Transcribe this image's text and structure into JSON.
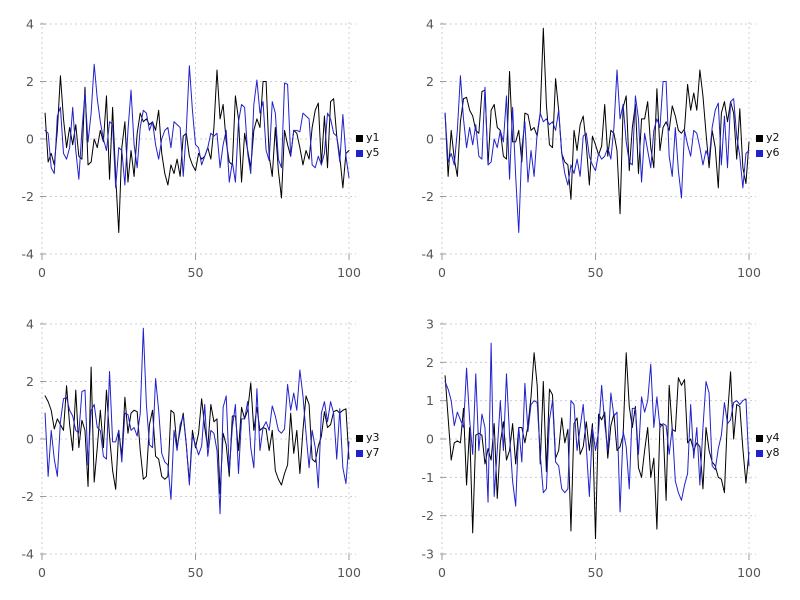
{
  "figure": {
    "background": "#ffffff"
  },
  "styles": {
    "grid_color": "#ccccd9",
    "tick_color": "#9a9aa0",
    "tick_label_color": "#555555",
    "legend_text_color": "#111111",
    "series_black": "#000000",
    "series_blue": "#2222cc"
  },
  "chart_data": [
    {
      "type": "line",
      "position": "top-left",
      "title": "",
      "xlabel": "",
      "ylabel": "",
      "grid": true,
      "legend_position": "right-center",
      "xlim": [
        0,
        100
      ],
      "ylim": [
        -4,
        4
      ],
      "xtick_values": [
        0,
        50,
        100
      ],
      "xtick_labels": [
        "0",
        "50",
        "100"
      ],
      "ytick_values": [
        -4,
        -2,
        0,
        2,
        4
      ],
      "ytick_labels": [
        "-4",
        "-2",
        "0",
        "2",
        "4"
      ],
      "x_start": 1,
      "x_step": 1,
      "series": [
        {
          "name": "y1",
          "color": "#000000",
          "values": [
            0.9,
            -0.8,
            -0.5,
            -0.9,
            0.3,
            2.2,
            0.7,
            -0.3,
            0.4,
            -0.2,
            0.5,
            -0.6,
            -0.7,
            1.8,
            -0.9,
            -0.8,
            0.0,
            -0.3,
            0.3,
            -0.1,
            1.5,
            -1.4,
            1.1,
            -1.3,
            -3.25,
            -0.3,
            0.6,
            -1.5,
            -0.4,
            -1.3,
            0.2,
            0.9,
            0.6,
            0.7,
            0.5,
            0.6,
            0.3,
            1.0,
            -0.5,
            -1.2,
            -1.6,
            -0.9,
            -1.2,
            -0.7,
            -1.3,
            0.1,
            0.2,
            -0.6,
            -0.9,
            -1.1,
            -0.5,
            -0.7,
            -0.6,
            -0.3,
            -0.7,
            0.4,
            2.4,
            0.7,
            1.2,
            -0.1,
            -0.8,
            -0.9,
            1.5,
            0.7,
            -1.5,
            0.2,
            -0.4,
            -1.0,
            0.3,
            0.7,
            0.4,
            2.0,
            2.0,
            -0.6,
            -1.3,
            0.4,
            -1.1,
            -2.05,
            0.3,
            -0.2,
            -0.6,
            0.3,
            0.2,
            -0.3,
            -0.9,
            -0.4,
            -0.7,
            0.4,
            1.0,
            1.25,
            -0.9,
            0.8,
            -1.0,
            1.3,
            1.4,
            0.1,
            -0.6,
            -1.7,
            -0.5,
            -0.4
          ]
        },
        {
          "name": "y5",
          "color": "#2222cc",
          "values": [
            0.3,
            0.2,
            -1.0,
            -1.2,
            0.8,
            1.1,
            -0.5,
            -0.7,
            -0.3,
            1.1,
            -0.4,
            -1.4,
            0.3,
            1.6,
            -0.1,
            0.9,
            2.6,
            1.4,
            0.6,
            0.0,
            -0.4,
            0.6,
            0.5,
            -1.7,
            -0.3,
            -0.4,
            -1.6,
            0.3,
            1.7,
            -0.2,
            -1.0,
            0.4,
            1.0,
            0.9,
            0.3,
            0.6,
            -0.2,
            -0.7,
            0.0,
            0.3,
            0.4,
            -0.3,
            0.6,
            0.5,
            0.4,
            -1.3,
            0.3,
            2.55,
            1.0,
            -0.2,
            -0.3,
            -0.9,
            -0.6,
            -0.3,
            0.2,
            0.1,
            0.2,
            -1.0,
            -0.2,
            0.3,
            -1.5,
            -0.8,
            -1.5,
            0.6,
            1.2,
            1.1,
            -0.5,
            -1.2,
            1.2,
            2.05,
            0.9,
            1.3,
            -0.4,
            -0.75,
            1.3,
            0.9,
            -0.7,
            -1.0,
            1.95,
            1.9,
            -0.6,
            0.3,
            0.3,
            0.25,
            0.9,
            0.8,
            0.7,
            -0.9,
            -1.0,
            -0.6,
            -0.9,
            -0.5,
            0.9,
            0.7,
            0.2,
            0.1,
            -0.8,
            0.85,
            -0.6,
            -1.35
          ]
        }
      ]
    },
    {
      "type": "line",
      "position": "top-right",
      "title": "",
      "xlabel": "",
      "ylabel": "",
      "grid": true,
      "legend_position": "right-center",
      "xlim": [
        0,
        100
      ],
      "ylim": [
        -4,
        4
      ],
      "xtick_values": [
        0,
        50,
        100
      ],
      "xtick_labels": [
        "0",
        "50",
        "100"
      ],
      "ytick_values": [
        -4,
        -2,
        0,
        2,
        4
      ],
      "ytick_labels": [
        "-4",
        "-2",
        "0",
        "2",
        "4"
      ],
      "x_start": 1,
      "x_step": 1,
      "series": [
        {
          "name": "y2",
          "color": "#000000",
          "values": [
            0.9,
            -1.3,
            0.3,
            -0.7,
            -1.3,
            0.6,
            1.4,
            1.45,
            1.0,
            0.8,
            0.3,
            0.2,
            1.65,
            1.7,
            -0.9,
            1.0,
            1.2,
            0.4,
            0.3,
            -0.6,
            -0.7,
            2.35,
            -0.1,
            -0.1,
            0.3,
            -0.8,
            0.9,
            0.85,
            0.3,
            0.4,
            0.1,
            0.9,
            3.85,
            1.2,
            -0.2,
            -0.3,
            2.1,
            1.0,
            -0.5,
            -0.8,
            -0.9,
            -2.1,
            0.3,
            -0.4,
            0.5,
            0.8,
            -0.2,
            -1.6,
            0.1,
            -0.2,
            -0.55,
            -0.25,
            1.2,
            -0.6,
            0.3,
            0.2,
            -0.4,
            -2.6,
            1.1,
            1.5,
            -1.1,
            0.4,
            1.2,
            -1.2,
            0.7,
            0.7,
            1.3,
            -0.3,
            -1.0,
            1.75,
            -0.4,
            0.4,
            0.6,
            0.3,
            1.15,
            0.8,
            0.3,
            0.2,
            0.35,
            1.9,
            1.0,
            1.6,
            1.0,
            2.4,
            1.5,
            0.2,
            -1.0,
            0.3,
            -0.3,
            -1.7,
            0.9,
            1.3,
            0.6,
            1.3,
            0.9,
            -0.7,
            1.05,
            -1.0,
            -1.55,
            -0.1
          ]
        },
        {
          "name": "y6",
          "color": "#2222cc",
          "values": [
            0.9,
            -0.8,
            -0.5,
            -0.9,
            0.3,
            2.2,
            0.7,
            -0.3,
            0.4,
            -0.2,
            0.5,
            -0.6,
            -0.7,
            1.8,
            -0.9,
            -0.8,
            0.0,
            -0.3,
            0.3,
            -0.1,
            1.5,
            -1.4,
            1.1,
            -1.3,
            -3.25,
            -0.3,
            0.6,
            -1.5,
            -0.4,
            -1.3,
            0.2,
            0.9,
            0.6,
            0.7,
            0.5,
            0.6,
            0.3,
            1.0,
            -0.5,
            -1.2,
            -1.6,
            -0.9,
            -1.2,
            -0.7,
            -1.3,
            0.1,
            0.2,
            -0.6,
            -0.9,
            -1.1,
            -0.5,
            -0.7,
            -0.6,
            -0.3,
            -0.7,
            0.4,
            2.4,
            0.7,
            1.2,
            -0.1,
            -0.8,
            -0.9,
            1.5,
            0.7,
            -1.5,
            0.2,
            -0.4,
            -1.0,
            0.3,
            0.7,
            0.4,
            2.0,
            2.0,
            -0.6,
            -1.3,
            0.4,
            -1.1,
            -2.05,
            0.3,
            -0.2,
            -0.6,
            0.3,
            0.2,
            -0.3,
            -0.9,
            -0.4,
            -0.7,
            0.4,
            1.0,
            1.25,
            -0.9,
            0.8,
            -1.0,
            1.3,
            1.4,
            0.1,
            -0.6,
            -1.7,
            -0.5,
            -0.4
          ]
        }
      ]
    },
    {
      "type": "line",
      "position": "bottom-left",
      "title": "",
      "xlabel": "",
      "ylabel": "",
      "grid": true,
      "legend_position": "right-center",
      "xlim": [
        0,
        100
      ],
      "ylim": [
        -4,
        4
      ],
      "xtick_values": [
        0,
        50,
        100
      ],
      "xtick_labels": [
        "0",
        "50",
        "100"
      ],
      "ytick_values": [
        -4,
        -2,
        0,
        2,
        4
      ],
      "ytick_labels": [
        "-4",
        "-2",
        "0",
        "2",
        "4"
      ],
      "x_start": 1,
      "x_step": 1,
      "series": [
        {
          "name": "y3",
          "color": "#000000",
          "values": [
            1.5,
            1.3,
            1.0,
            0.35,
            0.7,
            0.5,
            0.3,
            1.85,
            0.5,
            -0.4,
            1.7,
            -0.3,
            0.65,
            0.3,
            -1.65,
            2.5,
            -1.5,
            -0.3,
            1.0,
            -0.3,
            1.7,
            0.1,
            -1.1,
            -1.75,
            0.3,
            -0.6,
            1.45,
            0.2,
            0.9,
            1.0,
            0.95,
            -0.4,
            -1.4,
            -1.3,
            0.5,
            1.0,
            -0.6,
            -0.7,
            -1.3,
            -1.4,
            -1.3,
            1.0,
            0.9,
            -0.3,
            0.3,
            0.9,
            -0.2,
            -1.5,
            0.3,
            -0.3,
            0.2,
            1.4,
            0.4,
            -0.3,
            1.2,
            0.6,
            0.7,
            -1.9,
            0.2,
            -0.2,
            -1.3,
            0.8,
            0.8,
            -0.4,
            1.1,
            0.7,
            1.0,
            1.95,
            0.3,
            1.1,
            0.3,
            0.4,
            0.35,
            -0.4,
            0.3,
            -1.1,
            -1.4,
            -1.6,
            -1.2,
            -0.9,
            0.9,
            -0.5,
            0.3,
            -1.2,
            0.3,
            1.5,
            1.2,
            -0.7,
            -0.8,
            -0.25,
            0.1,
            0.95,
            0.4,
            0.5,
            0.95,
            1.0,
            0.9,
            1.0,
            1.05,
            -0.7
          ]
        },
        {
          "name": "y7",
          "color": "#2222cc",
          "values": [
            0.9,
            -1.3,
            0.3,
            -0.7,
            -1.3,
            0.6,
            1.4,
            1.45,
            1.0,
            0.8,
            0.3,
            0.2,
            1.65,
            1.7,
            -0.9,
            1.0,
            1.2,
            0.4,
            0.3,
            -0.6,
            -0.7,
            2.35,
            -0.1,
            -0.1,
            0.3,
            -0.8,
            0.9,
            0.85,
            0.3,
            0.4,
            0.1,
            0.9,
            3.85,
            1.2,
            -0.2,
            -0.3,
            2.1,
            1.0,
            -0.5,
            -0.8,
            -0.9,
            -2.1,
            0.3,
            -0.4,
            0.5,
            0.8,
            -0.2,
            -1.6,
            0.1,
            -0.2,
            -0.55,
            -0.25,
            1.2,
            -0.6,
            0.3,
            0.2,
            -0.4,
            -2.6,
            1.1,
            1.5,
            -1.1,
            0.4,
            1.2,
            -1.2,
            0.7,
            0.7,
            1.3,
            -0.3,
            -1.0,
            1.75,
            -0.4,
            0.4,
            0.6,
            0.3,
            1.15,
            0.8,
            0.3,
            0.2,
            0.35,
            1.9,
            1.0,
            1.6,
            1.0,
            2.4,
            1.5,
            0.2,
            -1.0,
            0.3,
            -0.3,
            -1.7,
            0.9,
            1.3,
            0.6,
            1.3,
            0.9,
            -0.7,
            1.05,
            -1.0,
            -1.55,
            -0.1
          ]
        }
      ]
    },
    {
      "type": "line",
      "position": "bottom-right",
      "title": "",
      "xlabel": "",
      "ylabel": "",
      "grid": true,
      "legend_position": "right-center",
      "xlim": [
        0,
        100
      ],
      "ylim": [
        -3,
        3
      ],
      "xtick_values": [
        0,
        50,
        100
      ],
      "xtick_labels": [
        "0",
        "50",
        "100"
      ],
      "ytick_values": [
        -3,
        -2,
        -1,
        0,
        1,
        2,
        3
      ],
      "ytick_labels": [
        "-3",
        "-2",
        "-1",
        "0",
        "1",
        "2",
        "3"
      ],
      "x_start": 1,
      "x_step": 1,
      "series": [
        {
          "name": "y4",
          "color": "#000000",
          "values": [
            1.65,
            0.55,
            -0.55,
            -0.1,
            -0.05,
            -0.1,
            0.8,
            -1.2,
            0.3,
            -2.45,
            0.1,
            0.15,
            0.1,
            -0.65,
            -0.25,
            -0.55,
            0.4,
            -1.55,
            -0.1,
            0.45,
            -0.55,
            -0.3,
            0.4,
            -0.65,
            0.3,
            0.3,
            -0.1,
            0.35,
            1.1,
            2.25,
            1.4,
            -0.65,
            1.5,
            -0.85,
            1.3,
            1.15,
            -0.5,
            -0.3,
            0.55,
            -0.1,
            0.25,
            -2.4,
            0.4,
            0.55,
            -0.4,
            -0.2,
            0.45,
            -0.3,
            0.4,
            -2.6,
            0.65,
            0.5,
            0.7,
            -0.5,
            0.35,
            0.65,
            -0.3,
            -0.2,
            0.1,
            2.25,
            0.85,
            0.3,
            0.85,
            -0.75,
            -1.0,
            -0.3,
            0.3,
            -1.0,
            -0.5,
            -2.35,
            0.4,
            0.35,
            -1.6,
            1.4,
            0.25,
            0.2,
            1.6,
            1.4,
            1.55,
            -0.1,
            0.0,
            -0.3,
            -0.1,
            -0.2,
            -1.3,
            0.3,
            -0.3,
            -0.6,
            -0.7,
            -1.0,
            -1.05,
            -1.4,
            0.6,
            1.75,
            0.0,
            0.9,
            0.85,
            -0.25,
            -1.15,
            -0.35
          ]
        },
        {
          "name": "y8",
          "color": "#2222cc",
          "values": [
            1.5,
            1.3,
            1.0,
            0.35,
            0.7,
            0.5,
            0.3,
            1.85,
            0.5,
            -0.4,
            1.7,
            -0.3,
            0.65,
            0.3,
            -1.65,
            2.5,
            -1.5,
            -0.3,
            1.0,
            -0.3,
            1.7,
            0.1,
            -1.1,
            -1.75,
            0.3,
            -0.6,
            1.45,
            0.2,
            0.9,
            1.0,
            0.95,
            -0.4,
            -1.4,
            -1.3,
            0.5,
            1.0,
            -0.6,
            -0.7,
            -1.3,
            -1.4,
            -1.3,
            1.0,
            0.9,
            -0.3,
            0.3,
            0.9,
            -0.2,
            -1.5,
            0.3,
            -0.3,
            0.2,
            1.4,
            0.4,
            -0.3,
            1.2,
            0.6,
            0.7,
            -1.9,
            0.2,
            -0.2,
            -1.3,
            0.8,
            0.8,
            -0.4,
            1.1,
            0.7,
            1.0,
            1.95,
            0.3,
            1.1,
            0.3,
            0.4,
            0.35,
            -0.4,
            0.3,
            -1.1,
            -1.4,
            -1.6,
            -1.2,
            -0.9,
            0.9,
            -0.5,
            0.3,
            -1.2,
            0.3,
            1.5,
            1.2,
            -0.7,
            -0.8,
            -0.25,
            0.1,
            0.95,
            0.4,
            0.5,
            0.95,
            1.0,
            0.9,
            1.0,
            1.05,
            -0.7
          ]
        }
      ]
    }
  ]
}
